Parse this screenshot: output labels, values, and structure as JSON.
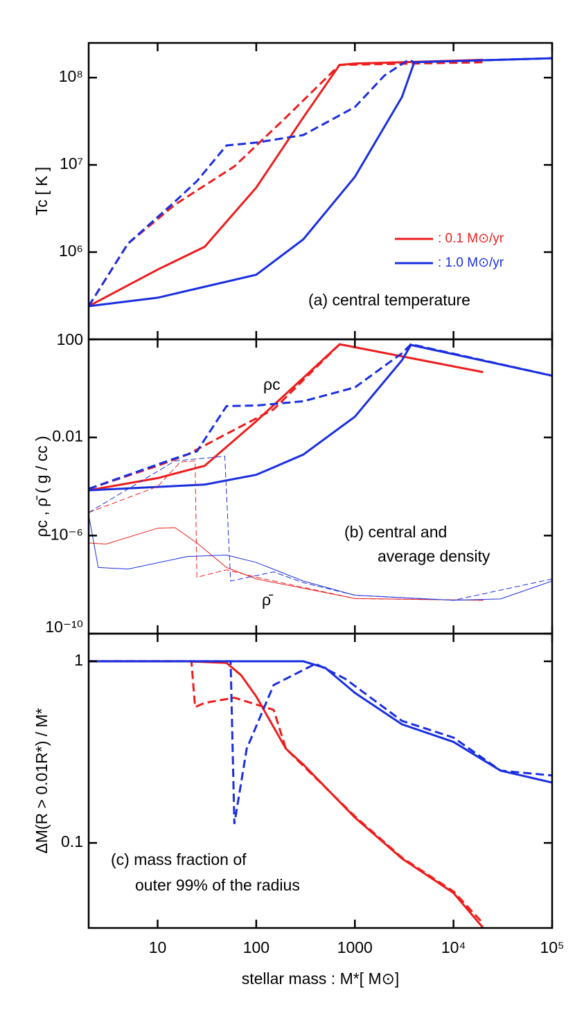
{
  "chart_data": [
    {
      "type": "line",
      "ylabel": "Tc [ K ]",
      "log_x": true,
      "log_y": true,
      "xlim": [
        2,
        100000
      ],
      "xticks": [
        10,
        100,
        1000,
        10000,
        100000
      ],
      "ylim": [
        100000,
        250000000
      ],
      "yticks": [
        {
          "value": 1000000,
          "label": "10⁶"
        },
        {
          "value": 10000000,
          "label": "10⁷"
        },
        {
          "value": 100000000,
          "label": "10⁸"
        }
      ],
      "annotations": [
        "(a) central temperature"
      ],
      "legend": [
        {
          "label": ": 0.1 M⊙/yr",
          "color": "#ee1c1c"
        },
        {
          "label": ": 1.0 M⊙/yr",
          "color": "#1a2ee0"
        }
      ],
      "series": [
        {
          "color": "#ee1c1c",
          "dash": false,
          "width": 3,
          "x": [
            2,
            10,
            30,
            100,
            300,
            700,
            1000,
            20000
          ],
          "values": [
            240000,
            630000,
            1150000,
            5500000,
            35000000,
            140000000,
            145000000,
            160000000
          ]
        },
        {
          "color": "#ee1c1c",
          "dash": true,
          "width": 3,
          "x": [
            2,
            5,
            15,
            30,
            60,
            200,
            700,
            20000
          ],
          "values": [
            240000,
            1250000,
            3500000,
            5800000,
            9600000,
            35000000,
            140000000,
            150000000
          ]
        },
        {
          "color": "#1a2ee0",
          "dash": true,
          "width": 3,
          "x": [
            2,
            5,
            15,
            25,
            50,
            100,
            300,
            1000,
            2000,
            3500,
            4000,
            100000
          ],
          "values": [
            240000,
            1250000,
            3800000,
            6500000,
            16700000,
            18000000,
            22000000,
            46000000,
            106000000,
            160000000,
            150000000,
            167000000
          ]
        },
        {
          "color": "#1a2ee0",
          "dash": false,
          "width": 3,
          "x": [
            2,
            10,
            100,
            300,
            1000,
            3000,
            4000,
            100000
          ],
          "values": [
            240000,
            300000,
            550000,
            1400000,
            7300000,
            60000000,
            150000000,
            167000000
          ]
        }
      ]
    },
    {
      "type": "line",
      "ylabel": "ρc , ρ̄ ( g / cc )",
      "log_x": true,
      "log_y": true,
      "xlim": [
        2,
        100000
      ],
      "xticks": [
        10,
        100,
        1000,
        10000,
        100000
      ],
      "ylim": [
        1e-10,
        100
      ],
      "yticks": [
        {
          "value": 1e-10,
          "label": "10⁻¹⁰"
        },
        {
          "value": 1e-06,
          "label": "10⁻⁶"
        },
        0.01,
        100
      ],
      "annotations": [
        "ρc",
        "(b) central and",
        "average density",
        "ρ̄"
      ],
      "series": [
        {
          "color": "#ee1c1c",
          "dash": false,
          "width": 3,
          "x": [
            2,
            10,
            30,
            100,
            300,
            700,
            20000
          ],
          "values": [
            7e-05,
            0.00022,
            0.0007,
            0.046,
            2.7,
            63,
            4.6
          ]
        },
        {
          "color": "#ee1c1c",
          "dash": true,
          "width": 3,
          "x": [
            2,
            10,
            20,
            50,
            150,
            700
          ],
          "values": [
            8e-05,
            0.0007,
            0.002,
            0.014,
            0.14,
            63
          ]
        },
        {
          "color": "#1a2ee0",
          "dash": true,
          "width": 3,
          "x": [
            2,
            15,
            25,
            50,
            100,
            300,
            1000,
            3000,
            3700,
            100000
          ],
          "values": [
            8e-05,
            0.0014,
            0.0027,
            0.19,
            0.2,
            0.3,
            1.1,
            27,
            63,
            3.3
          ]
        },
        {
          "color": "#1a2ee0",
          "dash": false,
          "width": 3,
          "x": [
            2,
            30,
            100,
            300,
            1000,
            3000,
            3700,
            100000
          ],
          "values": [
            7e-05,
            0.00012,
            0.0003,
            0.002,
            0.07,
            14,
            59,
            3.3
          ]
        },
        {
          "color": "#ee1c1c",
          "dash": false,
          "width": 1,
          "x": [
            2,
            3,
            10,
            15,
            25,
            50,
            100,
            1000,
            20000
          ],
          "values": [
            5e-07,
            4.5e-07,
            2e-06,
            2.1e-06,
            5e-07,
            5e-08,
            1.7e-08,
            2.7e-09,
            2.3e-09
          ]
        },
        {
          "color": "#ee1c1c",
          "dash": true,
          "width": 1,
          "x": [
            2,
            10,
            17,
            24,
            25,
            50,
            100,
            1000,
            20000
          ],
          "values": [
            8.7e-06,
            0.0001,
            0.001,
            0.0011,
            2e-08,
            4e-08,
            2e-08,
            2.7e-09,
            2.3e-09
          ]
        },
        {
          "color": "#1a2ee0",
          "dash": false,
          "width": 1,
          "x": [
            2,
            2.5,
            5,
            20,
            50,
            100,
            300,
            1000,
            10000,
            30000,
            100000
          ],
          "values": [
            7e-06,
            5e-08,
            4.3e-08,
            1.4e-07,
            1.6e-07,
            8e-08,
            1.4e-08,
            3.7e-09,
            2.3e-09,
            2.6e-09,
            1.4e-08
          ]
        },
        {
          "color": "#1a2ee0",
          "dash": true,
          "width": 1,
          "x": [
            2,
            15,
            48,
            55,
            150,
            300,
            1000,
            10000,
            100000
          ],
          "values": [
            8.7e-06,
            0.0011,
            0.0017,
            1.4e-08,
            3.3e-08,
            1.2e-08,
            3.7e-09,
            2.3e-09,
            1.7e-08
          ]
        }
      ]
    },
    {
      "type": "line",
      "ylabel": "ΔM(R > 0.01R*) / M*",
      "xlabel": "stellar mass :  M*[ M⊙]",
      "log_x": true,
      "log_y": true,
      "xlim": [
        2,
        100000
      ],
      "xticks": [
        10,
        100,
        1000,
        {
          "value": 10000,
          "label": "10⁴"
        },
        {
          "value": 100000,
          "label": "10⁵"
        }
      ],
      "ylim": [
        0.034,
        1.42
      ],
      "yticks": [
        0.1,
        1
      ],
      "annotations": [
        "(c) mass fraction of",
        "outer 99% of the radius"
      ],
      "series": [
        {
          "color": "#ee1c1c",
          "dash": false,
          "width": 3,
          "x": [
            2,
            20,
            50,
            70,
            100,
            200,
            300,
            1000,
            3000,
            10000,
            20000
          ],
          "values": [
            1,
            1,
            0.98,
            0.84,
            0.64,
            0.33,
            0.27,
            0.138,
            0.082,
            0.053,
            0.034
          ]
        },
        {
          "color": "#ee1c1c",
          "dash": true,
          "width": 3,
          "x": [
            2,
            22,
            24,
            30,
            60,
            150,
            200,
            1000,
            3000,
            10000,
            20000
          ],
          "values": [
            1,
            1,
            0.56,
            0.59,
            0.63,
            0.54,
            0.33,
            0.14,
            0.083,
            0.054,
            0.036
          ]
        },
        {
          "color": "#1a2ee0",
          "dash": true,
          "width": 3,
          "x": [
            2,
            55,
            60,
            80,
            150,
            400,
            800,
            3000,
            10000,
            30000,
            100000
          ],
          "values": [
            1,
            1,
            0.127,
            0.33,
            0.74,
            0.97,
            0.8,
            0.47,
            0.38,
            0.25,
            0.235
          ]
        },
        {
          "color": "#1a2ee0",
          "dash": false,
          "width": 3,
          "x": [
            2,
            300,
            500,
            1000,
            3000,
            10000,
            30000,
            100000
          ],
          "values": [
            1,
            1,
            0.92,
            0.67,
            0.45,
            0.36,
            0.25,
            0.215
          ]
        }
      ]
    }
  ]
}
